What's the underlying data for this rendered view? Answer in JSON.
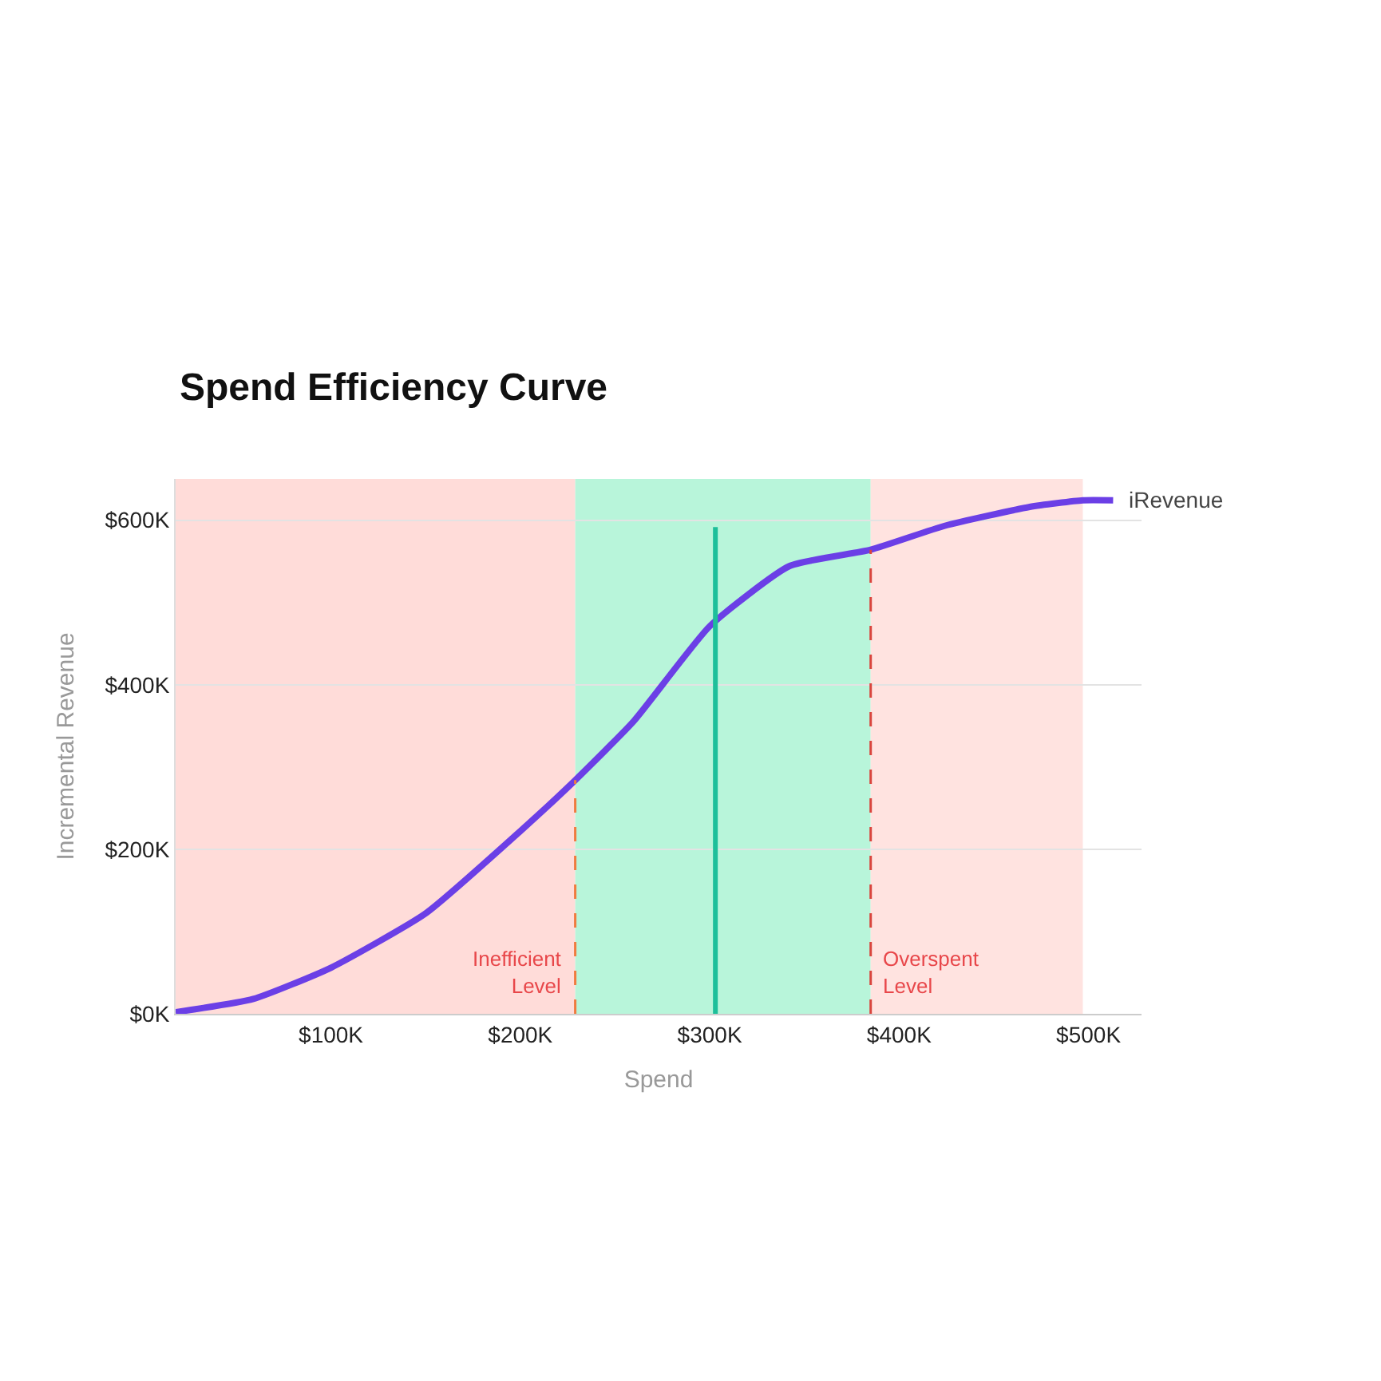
{
  "chart_data": {
    "type": "line",
    "title": "Spend Efficiency Curve",
    "xlabel": "Spend",
    "ylabel": "Incremental Revenue",
    "x": [
      18,
      59,
      100,
      150,
      200,
      229,
      260,
      300,
      342,
      385,
      424,
      469,
      497,
      513
    ],
    "series": [
      {
        "name": "iRevenue",
        "color": "#6b3fe6",
        "values": [
          2,
          18,
          56,
          122,
          222,
          284,
          356,
          471,
          544,
          564,
          593,
          616,
          624,
          624
        ]
      }
    ],
    "xlim": [
      18,
      528
    ],
    "ylim": [
      0,
      650
    ],
    "xticks": [
      {
        "value": 100,
        "label": "$100K"
      },
      {
        "value": 200,
        "label": "$200K"
      },
      {
        "value": 300,
        "label": "$300K"
      },
      {
        "value": 400,
        "label": "$400K"
      },
      {
        "value": 500,
        "label": "$500K"
      }
    ],
    "yticks": [
      {
        "value": 0,
        "label": "$0K"
      },
      {
        "value": 200,
        "label": "$200K"
      },
      {
        "value": 400,
        "label": "$400K"
      },
      {
        "value": 600,
        "label": "$600K"
      }
    ],
    "grid": "y",
    "legend": false,
    "marker": "none",
    "line_style": "solid",
    "ref_lines": [
      {
        "axis": "x",
        "value": 229,
        "label": "Inefficient Level",
        "color": "#f07b3f",
        "line_style": "dashed"
      },
      {
        "axis": "x",
        "value": 303,
        "color": "#1dbf9a",
        "line_style": "solid"
      },
      {
        "axis": "x",
        "value": 385,
        "label": "Overspent Level",
        "color": "#d9463e",
        "line_style": "dashed"
      }
    ],
    "bands": [
      {
        "axis": "x",
        "from": 18,
        "to": 229,
        "color": "#ffdcd9"
      },
      {
        "axis": "x",
        "from": 229,
        "to": 385,
        "color": "#b8f5da"
      },
      {
        "axis": "x",
        "from": 385,
        "to": 497,
        "color": "#ffe3e0"
      }
    ]
  }
}
